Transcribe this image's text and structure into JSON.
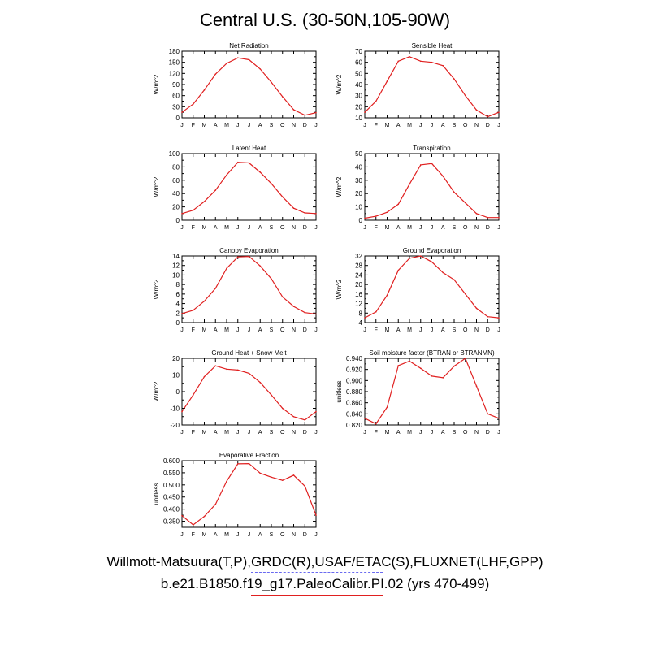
{
  "title": "Central U.S. (30-50N,105-90W)",
  "month_labels": [
    "J",
    "F",
    "M",
    "A",
    "M",
    "J",
    "J",
    "A",
    "S",
    "O",
    "N",
    "D",
    "J"
  ],
  "legend": {
    "obs_label": "Willmott-Matsuura(T,P),GRDC(R),USAF/ETAC(S),FLUXNET(LHF,GPP)",
    "model_label": "b.e21.B1850.f19_g17.PaleoCalibr.PI.02 (yrs 470-499)",
    "obs_color": "#6a6af0",
    "model_color": "#e02020"
  },
  "chart_data": [
    {
      "type": "line",
      "title": "Net Radiation",
      "ylabel": "W/m^2",
      "ylim": [
        0,
        180
      ],
      "yticks": [
        "0",
        "30",
        "60",
        "90",
        "120",
        "150",
        "180"
      ],
      "yticks_values": [
        0,
        30,
        60,
        90,
        120,
        150,
        180
      ],
      "series": [
        {
          "values": [
            15,
            37,
            75,
            118,
            147,
            162,
            157,
            132,
            96,
            57,
            22,
            7,
            14
          ]
        }
      ]
    },
    {
      "type": "line",
      "title": "Sensible Heat",
      "ylabel": "W/m^2",
      "ylim": [
        10,
        70
      ],
      "yticks": [
        "10",
        "20",
        "30",
        "40",
        "50",
        "60",
        "70"
      ],
      "yticks_values": [
        10,
        20,
        30,
        40,
        50,
        60,
        70
      ],
      "series": [
        {
          "values": [
            15,
            25,
            43,
            61,
            65,
            61,
            60,
            57,
            45,
            30,
            17,
            11,
            15
          ]
        }
      ]
    },
    {
      "type": "line",
      "title": "Latent Heat",
      "ylabel": "W/m^2",
      "ylim": [
        0,
        100
      ],
      "yticks": [
        "0",
        "20",
        "40",
        "60",
        "80",
        "100"
      ],
      "yticks_values": [
        0,
        20,
        40,
        60,
        80,
        100
      ],
      "series": [
        {
          "values": [
            10,
            15,
            28,
            45,
            68,
            87,
            86,
            72,
            55,
            35,
            18,
            11,
            10
          ]
        }
      ]
    },
    {
      "type": "line",
      "title": "Transpiration",
      "ylabel": "W/m^2",
      "ylim": [
        0,
        50
      ],
      "yticks": [
        "0",
        "10",
        "20",
        "30",
        "40",
        "50"
      ],
      "yticks_values": [
        0,
        10,
        20,
        30,
        40,
        50
      ],
      "series": [
        {
          "values": [
            1.5,
            3,
            6,
            12,
            27,
            41.5,
            42.5,
            33,
            21,
            13,
            5,
            2,
            2
          ]
        }
      ]
    },
    {
      "type": "line",
      "title": "Canopy Evaporation",
      "ylabel": "W/m^2",
      "ylim": [
        0,
        14
      ],
      "yticks": [
        "0",
        "2",
        "4",
        "6",
        "8",
        "10",
        "12",
        "14"
      ],
      "yticks_values": [
        0,
        2,
        4,
        6,
        8,
        10,
        12,
        14
      ],
      "series": [
        {
          "values": [
            1.9,
            2.6,
            4.5,
            7.2,
            11.4,
            13.8,
            13.9,
            11.9,
            9.2,
            5.4,
            3.4,
            2.1,
            1.8
          ]
        }
      ]
    },
    {
      "type": "line",
      "title": "Ground Evaporation",
      "ylabel": "W/m^2",
      "ylim": [
        4,
        32
      ],
      "yticks": [
        "4",
        "8",
        "12",
        "16",
        "20",
        "24",
        "28",
        "32"
      ],
      "yticks_values": [
        4,
        8,
        12,
        16,
        20,
        24,
        28,
        32
      ],
      "series": [
        {
          "values": [
            6,
            8.5,
            15.5,
            26,
            31,
            32,
            29.5,
            25,
            22,
            16,
            10,
            6.5,
            6
          ]
        }
      ]
    },
    {
      "type": "line",
      "title": "Ground Heat + Snow Melt",
      "ylabel": "W/m^2",
      "ylim": [
        -20,
        20
      ],
      "yticks": [
        "-20",
        "-10",
        "0",
        "10",
        "20"
      ],
      "yticks_values": [
        -20,
        -10,
        0,
        10,
        20
      ],
      "series": [
        {
          "values": [
            -12,
            -2,
            9,
            15.5,
            13.5,
            13,
            11,
            5.5,
            -2,
            -10,
            -15,
            -17,
            -12
          ]
        }
      ]
    },
    {
      "type": "line",
      "title": "Soil moisture factor (BTRAN or BTRANMN)",
      "ylabel": "unitless",
      "ylim": [
        0.82,
        0.94
      ],
      "yticks": [
        "0.820",
        "0.840",
        "0.860",
        "0.880",
        "0.900",
        "0.920",
        "0.940"
      ],
      "yticks_values": [
        0.82,
        0.84,
        0.86,
        0.88,
        0.9,
        0.92,
        0.94
      ],
      "series": [
        {
          "values": [
            0.832,
            0.822,
            0.852,
            0.927,
            0.935,
            0.922,
            0.908,
            0.905,
            0.926,
            0.94,
            0.89,
            0.84,
            0.832
          ]
        }
      ]
    },
    {
      "type": "line",
      "title": "Evaporative Fraction",
      "ylabel": "unitless",
      "ylim": [
        0.325,
        0.6
      ],
      "yticks": [
        "0.350",
        "0.400",
        "0.450",
        "0.500",
        "0.550",
        "0.600"
      ],
      "yticks_values": [
        0.35,
        0.4,
        0.45,
        0.5,
        0.55,
        0.6
      ],
      "series": [
        {
          "values": [
            0.373,
            0.335,
            0.37,
            0.42,
            0.515,
            0.587,
            0.588,
            0.548,
            0.532,
            0.519,
            0.54,
            0.495,
            0.375
          ]
        }
      ]
    }
  ]
}
